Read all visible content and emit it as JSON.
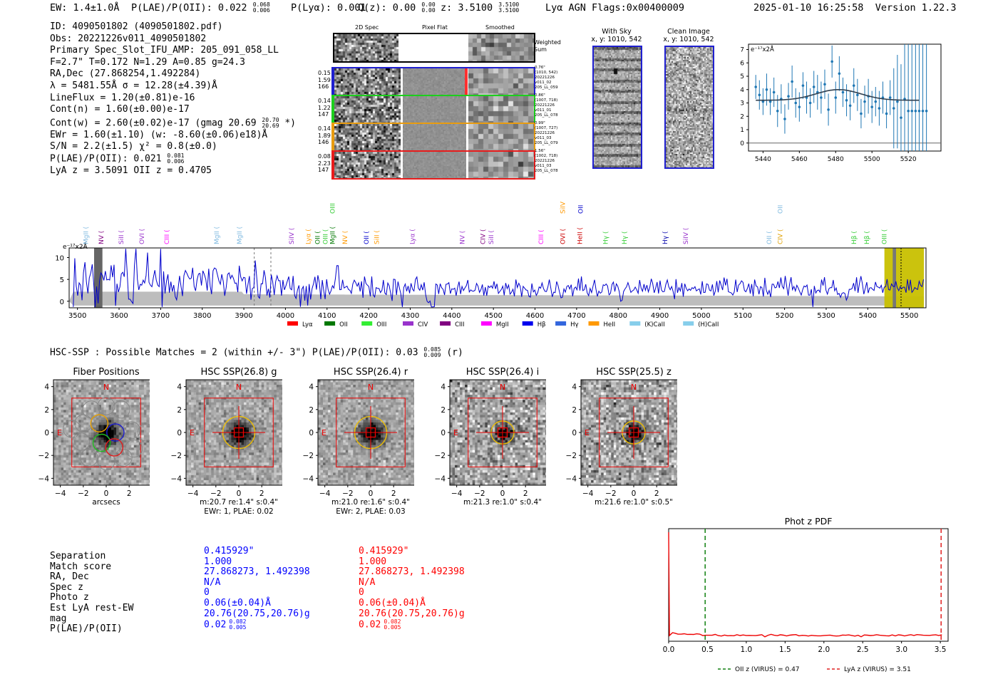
{
  "header": {
    "ew": "EW: 1.4±1.0Å",
    "plae": "P(LAE)/P(OII): 0.022",
    "plae_hi": "0.068",
    "plae_lo": "0.006",
    "plya": "P(Lyα): 0.001",
    "qz": "Q(z): 0.00",
    "qz_hi": "0.00",
    "qz_lo": "0.00",
    "z": "z: 3.5100",
    "z_hi": "3.5100",
    "z_lo": "3.5100",
    "lines": "Lyα  AGN  Flags:0x00400009",
    "datetime": "2025-01-10 16:25:58",
    "version": "Version 1.22.3"
  },
  "info": {
    "id": "ID: 4090501802 (4090501802.pdf)",
    "obs": "Obs: 20221226v011_4090501802",
    "primary": "Primary Spec_Slot_IFU_AMP: 205_091_058_LL",
    "fiber": "F=2.7\"  T=0.172  N=1.29  A=0.85  g=24.3",
    "radec": "RA,Dec (27.868254,1.492284)",
    "lambda": "λ = 5481.55Å  σ = 12.28(±4.39)Å",
    "lineflux": "LineFlux = 1.20(±0.81)e-16",
    "contn": "Cont(n) = 1.60(±0.00)e-17",
    "contw": "Cont(w) = 2.60(±0.02)e-17 (gmag 20.69",
    "contw_hi": "20.70",
    "contw_lo": "20.69",
    "contw_end": "*)",
    "ewr": "EWr = 1.60(±1.10) (w: -8.60(±0.06)e18)Å",
    "sn": "S/N = 2.2(±1.5)  χ² = 0.8(±0.0)",
    "plae": "P(LAE)/P(OII): 0.021",
    "plae_hi": "0.081",
    "plae_lo": "0.006",
    "lyaz": "LyA z = 3.5091  OII z = 0.4705"
  },
  "cutouts": {
    "col1": "2D Spec",
    "col2": "Pixel Flat",
    "col3": "Smoothed",
    "weighted": "Weighted Sum",
    "rows": [
      {
        "vals": [
          "0.15",
          "1.59",
          "166"
        ],
        "color": "#1f1fd0",
        "notes": [
          "0.76\"",
          "(1010, 542)",
          "20221226",
          "v011_02",
          "205_LL_059"
        ]
      },
      {
        "vals": [
          "0.14",
          "1.22",
          "147"
        ],
        "color": "#1ccf1c",
        "notes": [
          "0.86\"",
          "(1007, 718)",
          "20221226",
          "v011_01",
          "205_LL_078"
        ]
      },
      {
        "vals": [
          "0.14",
          "1.89",
          "146"
        ],
        "color": "#e89c10",
        "notes": [
          "0.99\"",
          "(1007, 727)",
          "20221226",
          "v011_03",
          "205_LL_079"
        ]
      },
      {
        "vals": [
          "0.08",
          "2.23",
          "147"
        ],
        "color": "#e81c1c",
        "notes": [
          "1.56\"",
          "(1002, 718)",
          "20221226",
          "v011_03",
          "205_LL_078"
        ]
      }
    ]
  },
  "sky": {
    "with_sky": "With Sky",
    "with_sky_xy": "x, y: 1010, 542",
    "clean": "Clean Image",
    "clean_xy": "x, y: 1010, 542"
  },
  "zoom_chart": {
    "type": "scatter",
    "ylabel": "e⁻¹⁷x2Å",
    "xlim": [
      5432,
      5538
    ],
    "ylim": [
      -0.6,
      7.4
    ],
    "xticks": [
      5440,
      5460,
      5480,
      5500,
      5520
    ],
    "yticks": [
      0,
      1,
      2,
      3,
      4,
      5,
      6,
      7
    ],
    "x": [
      5436,
      5438,
      5440,
      5442,
      5444,
      5446,
      5448,
      5450,
      5452,
      5454,
      5456,
      5458,
      5460,
      5462,
      5464,
      5466,
      5468,
      5470,
      5472,
      5474,
      5476,
      5478,
      5480,
      5482,
      5484,
      5486,
      5488,
      5490,
      5492,
      5494,
      5496,
      5498,
      5500,
      5502,
      5504,
      5506,
      5508,
      5510,
      5512,
      5514,
      5516,
      5518,
      5520,
      5522,
      5524,
      5526,
      5528,
      5530
    ],
    "y": [
      4.2,
      3.6,
      3.1,
      4.0,
      3.1,
      3.8,
      2.4,
      3.3,
      1.8,
      3.5,
      4.6,
      3.0,
      2.7,
      4.3,
      3.4,
      3.0,
      4.2,
      3.8,
      3.4,
      4.4,
      2.5,
      6.1,
      3.4,
      5.2,
      3.8,
      3.2,
      2.8,
      4.3,
      3.6,
      2.2,
      3.1,
      3.5,
      2.7,
      3.1,
      2.6,
      3.4,
      2.2,
      3.4,
      2.6,
      3.1,
      1.9,
      3.3,
      2.4,
      2.4,
      2.4,
      2.4,
      2.4,
      2.4
    ],
    "err": [
      0.9,
      1.1,
      1.0,
      1.2,
      1.0,
      1.1,
      1.2,
      1.1,
      1.1,
      1.0,
      1.2,
      1.1,
      1.1,
      1.0,
      1.2,
      1.1,
      1.2,
      1.3,
      1.2,
      1.1,
      1.2,
      1.2,
      1.2,
      1.3,
      1.1,
      1.2,
      1.1,
      1.3,
      1.2,
      1.1,
      1.2,
      1.3,
      1.2,
      1.1,
      1.3,
      1.2,
      1.1,
      1.3,
      3.0,
      3.5,
      4.0,
      4.5,
      5.0,
      6.0,
      6.0,
      6.0,
      6.0,
      6.0
    ],
    "fit": {
      "continuum": 3.2,
      "amp": 0.8,
      "center": 5481.55,
      "sigma": 12.28
    }
  },
  "full_spec": {
    "type": "line",
    "ylabel": "e⁻¹⁷x2Å",
    "xlim": [
      3480,
      5540
    ],
    "ylim": [
      -1.5,
      12.2
    ],
    "xticks": [
      3500,
      3600,
      3700,
      3800,
      3900,
      4000,
      4100,
      4200,
      4300,
      4400,
      4500,
      4600,
      4700,
      4800,
      4900,
      5000,
      5100,
      5200,
      5300,
      5400,
      5500
    ],
    "yticks": [
      0,
      5,
      10
    ],
    "highlight": [
      5440,
      5535
    ],
    "line_labels": [
      {
        "t": "MgII",
        "x": 3525,
        "c": "#7fb9e0",
        "tier": 0
      },
      {
        "t": "NV",
        "x": 3562,
        "c": "#800080",
        "tier": 0
      },
      {
        "t": "SiII",
        "x": 3610,
        "c": "#9933cc",
        "tier": 0
      },
      {
        "t": "OVI",
        "x": 3660,
        "c": "#9933cc",
        "tier": 0
      },
      {
        "t": "CIII",
        "x": 3720,
        "c": "#ff00ff",
        "tier": 0
      },
      {
        "t": "MgII",
        "x": 3840,
        "c": "#7fb9e0",
        "tier": 0
      },
      {
        "t": "MgII",
        "x": 3895,
        "c": "#7fb9e0",
        "tier": 0
      },
      {
        "t": "SiIV",
        "x": 4020,
        "c": "#9933cc",
        "tier": 0
      },
      {
        "t": "Lyα",
        "x": 4060,
        "c": "#ff9900",
        "tier": 0
      },
      {
        "t": "OII",
        "x": 4082,
        "c": "#007700",
        "tier": 0
      },
      {
        "t": "OIII",
        "x": 4101,
        "c": "#33cc33",
        "tier": 0
      },
      {
        "t": "MgII",
        "x": 4118,
        "c": "#007700",
        "tier": 0
      },
      {
        "t": "NV",
        "x": 4148,
        "c": "#ff9900",
        "tier": 0
      },
      {
        "t": "OII",
        "x": 4200,
        "c": "#0000cc",
        "tier": 0
      },
      {
        "t": "SiII",
        "x": 4225,
        "c": "#ff9900",
        "tier": 0
      },
      {
        "t": "Lyα",
        "x": 4310,
        "c": "#9933cc",
        "tier": 0
      },
      {
        "t": "NV",
        "x": 4430,
        "c": "#9933cc",
        "tier": 0
      },
      {
        "t": "CIV",
        "x": 4480,
        "c": "#800080",
        "tier": 0
      },
      {
        "t": "SiII",
        "x": 4500,
        "c": "#9933cc",
        "tier": 0
      },
      {
        "t": "CIII",
        "x": 4620,
        "c": "#ff00ff",
        "tier": 0
      },
      {
        "t": "OVI",
        "x": 4672,
        "c": "#cc0000",
        "tier": 0
      },
      {
        "t": "HeII",
        "x": 4713,
        "c": "#cc0000",
        "tier": 0
      },
      {
        "t": "Hγ",
        "x": 4775,
        "c": "#33cc33",
        "tier": 0
      },
      {
        "t": "Hγ",
        "x": 4820,
        "c": "#33cc33",
        "tier": 0
      },
      {
        "t": "Hγ",
        "x": 4918,
        "c": "#0000aa",
        "tier": 0
      },
      {
        "t": "SiIV",
        "x": 4968,
        "c": "#9933cc",
        "tier": 0
      },
      {
        "t": "OII",
        "x": 5168,
        "c": "#7fb9e0",
        "tier": 0
      },
      {
        "t": "CIV",
        "x": 5195,
        "c": "#e0a000",
        "tier": 0
      },
      {
        "t": "Hβ",
        "x": 5372,
        "c": "#33cc33",
        "tier": 0
      },
      {
        "t": "Hβ",
        "x": 5403,
        "c": "#33cc33",
        "tier": 0
      },
      {
        "t": "OIII",
        "x": 5445,
        "c": "#33cc33",
        "tier": 0
      },
      {
        "t": "OIII",
        "x": 4118,
        "c": "#33cc33",
        "tier": 1
      },
      {
        "t": "SiIV",
        "x": 4672,
        "c": "#ff9900",
        "tier": 1
      },
      {
        "t": "OII",
        "x": 4715,
        "c": "#0000cc",
        "tier": 1
      },
      {
        "t": "OII",
        "x": 5195,
        "c": "#7fb9e0",
        "tier": 1
      }
    ],
    "legend": [
      {
        "t": "Lyα",
        "c": "#ff0000"
      },
      {
        "t": "OII",
        "c": "#007700"
      },
      {
        "t": "OIII",
        "c": "#33ee33"
      },
      {
        "t": "CIV",
        "c": "#9933cc"
      },
      {
        "t": "CIII",
        "c": "#800080"
      },
      {
        "t": "MgII",
        "c": "#ff00ff"
      },
      {
        "t": "Hβ",
        "c": "#0000ee"
      },
      {
        "t": "Hγ",
        "c": "#3366dd"
      },
      {
        "t": "HeII",
        "c": "#ff9900"
      },
      {
        "t": "(K)CaII",
        "c": "#87ceeb"
      },
      {
        "t": "(H)CaII",
        "c": "#87ceeb"
      }
    ]
  },
  "hsc": {
    "title": "HSC-SSP : Possible Matches = 2 (within +/- 3\")  P(LAE)/P(OII): 0.03",
    "plae_hi": "0.085",
    "plae_lo": "0.009",
    "suffix": "(r)",
    "ticks": [
      "4",
      "2",
      "0",
      "−2",
      "−4"
    ],
    "panels": [
      {
        "title": "Fiber Positions",
        "cap1": "arcsecs",
        "cap2": ""
      },
      {
        "title": "HSC SSP(26.8) g",
        "cap1": "m:20.7  re:1.4\"  s:0.4\"",
        "cap2": "EWr: 1, PLAE: 0.02"
      },
      {
        "title": "HSC SSP(26.4) r",
        "cap1": "m:21.0  re:1.6\"  s:0.4\"",
        "cap2": "EWr: 2, PLAE: 0.03"
      },
      {
        "title": "HSC SSP(26.4) i",
        "cap1": "m:21.3  re:1.0\"  s:0.4\"",
        "cap2": ""
      },
      {
        "title": "HSC SSP(25.5) z",
        "cap1": "m:21.6  re:1.0\"  s:0.5\"",
        "cap2": ""
      }
    ],
    "compass_n": "N",
    "compass_e": "E"
  },
  "match_table": {
    "labels": [
      "Separation",
      "Match score",
      "RA, Dec",
      "Spec z",
      "Photo z",
      "Est LyA rest-EW",
      "mag",
      "P(LAE)/P(OII)"
    ],
    "col_blue": [
      "0.415929\"",
      "1.000",
      "27.868273, 1.492398",
      "N/A",
      "0",
      "0.06(±0.04)Å",
      "20.76(20.75,20.76)g",
      "0.02"
    ],
    "col_red": [
      "0.415929\"",
      "1.000",
      "27.868273, 1.492398",
      "N/A",
      "0",
      "0.06(±0.04)Å",
      "20.76(20.75,20.76)g",
      "0.02"
    ],
    "plae_hi": "0.082",
    "plae_lo": "0.005",
    "blue": "#0000ff",
    "red": "#ff0000"
  },
  "photz": {
    "type": "line",
    "title": "Phot z PDF",
    "xlim": [
      0,
      3.6
    ],
    "xticks": [
      "0.0",
      "0.5",
      "1.0",
      "1.5",
      "2.0",
      "2.5",
      "3.0",
      "3.5"
    ],
    "oii_z": 0.47,
    "lya_z": 3.51,
    "legend_oii": "OII z (VIRUS) = 0.47",
    "legend_lya": "LyA z (VIRUS) = 3.51"
  }
}
